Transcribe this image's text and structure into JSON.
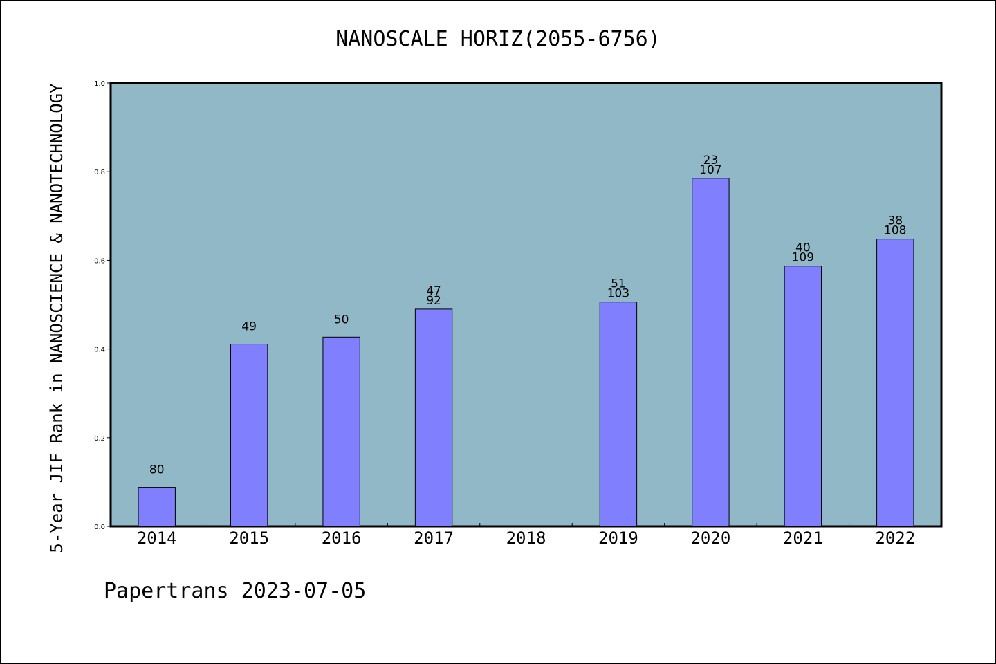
{
  "chart_data": {
    "type": "bar",
    "title": "NANOSCALE HORIZ(2055-6756)",
    "ylabel": "5-Year JIF Rank in NANOSCIENCE & NANOTECHNOLOGY",
    "xlabel": "",
    "footer": "Papertrans 2023-07-05",
    "ylim": [
      0,
      1.0
    ],
    "yticks": [
      "0.0",
      "0.2",
      "0.4",
      "0.6",
      "0.8",
      "1.0"
    ],
    "grid": false,
    "categories": [
      "2014",
      "2015",
      "2016",
      "2017",
      "2018",
      "2019",
      "2020",
      "2021",
      "2022"
    ],
    "values": [
      0.088,
      0.411,
      0.427,
      0.49,
      null,
      0.506,
      0.785,
      0.587,
      0.648
    ],
    "labels_top": [
      "",
      "",
      "",
      "47",
      "",
      "51",
      "23",
      "40",
      "38"
    ],
    "labels_bottom": [
      "80",
      "49",
      "50",
      "92",
      "",
      "103",
      "107",
      "109",
      "108"
    ],
    "colors": {
      "plot_bg": "#90b8c6",
      "bar": "#8080ff",
      "bar_edge": "#000000"
    }
  }
}
